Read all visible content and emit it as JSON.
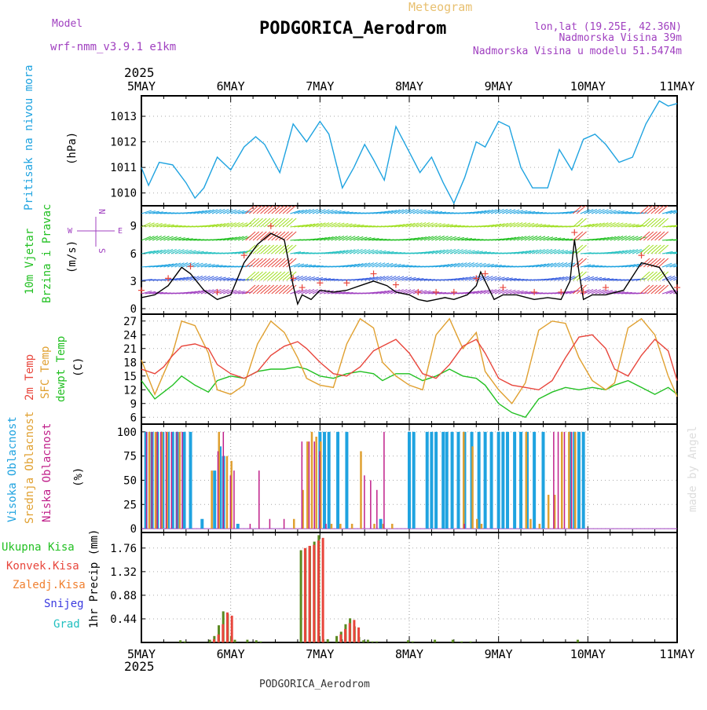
{
  "header": {
    "model_label": "Model",
    "model_name": "wrf-nmm_v3.9.1 e1km",
    "meteogram_label": "Meteogram",
    "station_title": "PODGORICA_Aerodrom",
    "lonlat": "lon,lat (19.25E, 42.36N)",
    "elevation": "Nadmorska Visina 39m",
    "model_elevation": "Nadmorska Visina u modelu 51.5474m",
    "year_top": "2025"
  },
  "footer": {
    "year_bottom": "2025",
    "station_caption": "PODGORICA_Aerodrom",
    "watermark": "made by Angel"
  },
  "days": [
    "5MAY",
    "6MAY",
    "7MAY",
    "8MAY",
    "9MAY",
    "10MAY",
    "11MAY"
  ],
  "colors": {
    "pressure": "#1fa3e0",
    "temp2m": "#e8463c",
    "sfc": "#e0a030",
    "dewpt": "#22c022",
    "wind_speed": "#000000",
    "gust_marker": "#e8463c",
    "cloud_high": "#1fa3e0",
    "cloud_mid": "#e0a030",
    "cloud_low": "#c0208a",
    "precip_total": "#22c022",
    "precip_conv": "#e8463c",
    "precip_frozen": "#f08030",
    "precip_snow": "#3a3ae0",
    "precip_hail": "#22c0c0",
    "purple": "#a040c0"
  },
  "panel_labels": {
    "pressure": {
      "l1": "Pritisak na nivou mora",
      "unit": "(hPa)"
    },
    "wind": {
      "l1": "10m Vjetar",
      "l2": "Brzina i Pravac",
      "unit": "(m/s)",
      "compass_n": "N",
      "compass_s": "S",
      "compass_w": "W",
      "compass_e": "E"
    },
    "temp": {
      "l1": "2m Temp",
      "l2": "SFC Temp",
      "l3": "dewpt Temp",
      "unit": "(C)"
    },
    "cloud": {
      "l1": "Visoka Oblacnost",
      "l2": "Srednja Oblacnost",
      "l3": "Niska Oblacnost",
      "unit": "(%)"
    },
    "precip": {
      "l1": "Ukupna Kisa",
      "l2": "Konvek.Kisa",
      "l3": "Zaledj.Kisa",
      "l4": "Snijeg",
      "l5": "Grad",
      "unit": "1hr Precip (mm)"
    }
  },
  "chart_data": [
    {
      "type": "line",
      "title": "Pritisak na nivou mora",
      "ylabel": "(hPa)",
      "ylim": [
        1009.5,
        1013.8
      ],
      "yticks": [
        1010,
        1011,
        1012,
        1013
      ],
      "x_days": [
        0,
        0.08,
        0.2,
        0.35,
        0.5,
        0.6,
        0.7,
        0.85,
        1.0,
        1.15,
        1.28,
        1.38,
        1.55,
        1.7,
        1.85,
        2.0,
        2.1,
        2.25,
        2.38,
        2.5,
        2.6,
        2.72,
        2.85,
        3.0,
        3.12,
        3.25,
        3.38,
        3.5,
        3.62,
        3.75,
        3.85,
        4.0,
        4.12,
        4.25,
        4.38,
        4.55,
        4.68,
        4.82,
        4.95,
        5.08,
        5.2,
        5.35,
        5.5,
        5.65,
        5.8,
        5.9,
        6.0
      ],
      "series": [
        {
          "name": "Pritisak na nivou mora",
          "values": [
            1011.0,
            1010.3,
            1011.2,
            1011.1,
            1010.4,
            1009.8,
            1010.2,
            1011.4,
            1010.9,
            1011.8,
            1012.2,
            1011.9,
            1010.8,
            1012.7,
            1012.0,
            1012.8,
            1012.3,
            1010.2,
            1011.0,
            1011.9,
            1011.3,
            1010.5,
            1012.6,
            1011.6,
            1010.8,
            1011.4,
            1010.4,
            1009.6,
            1010.6,
            1012.0,
            1011.8,
            1012.8,
            1012.6,
            1011.0,
            1010.2,
            1010.2,
            1011.7,
            1010.9,
            1012.1,
            1012.3,
            1011.9,
            1011.2,
            1011.4,
            1012.7,
            1013.6,
            1013.4,
            1013.5
          ]
        }
      ]
    },
    {
      "type": "line",
      "title": "10m Vjetar Brzina i Pravac",
      "ylabel": "(m/s)",
      "ylim": [
        -0.6,
        11.2
      ],
      "yticks": [
        0,
        3,
        6,
        9
      ],
      "x_days": [
        0,
        0.15,
        0.3,
        0.45,
        0.55,
        0.7,
        0.85,
        1.0,
        1.15,
        1.3,
        1.45,
        1.6,
        1.7,
        1.75,
        1.8,
        1.9,
        2.0,
        2.15,
        2.3,
        2.45,
        2.6,
        2.75,
        2.85,
        3.0,
        3.1,
        3.2,
        3.3,
        3.4,
        3.5,
        3.65,
        3.75,
        3.8,
        3.85,
        3.95,
        4.05,
        4.2,
        4.4,
        4.55,
        4.7,
        4.8,
        4.85,
        4.9,
        4.95,
        5.05,
        5.2,
        5.4,
        5.6,
        5.8,
        6.0
      ],
      "series": [
        {
          "name": "10m Vjetar",
          "values": [
            1.2,
            1.5,
            2.5,
            4.5,
            3.8,
            2.0,
            1.0,
            1.5,
            5.0,
            7.0,
            8.2,
            7.5,
            2.5,
            0.5,
            1.5,
            1.0,
            2.0,
            1.8,
            2.0,
            2.5,
            3.0,
            2.5,
            1.8,
            1.5,
            1.0,
            0.8,
            1.0,
            1.2,
            1.0,
            1.5,
            2.5,
            4.0,
            3.0,
            1.0,
            1.5,
            1.5,
            1.0,
            1.2,
            1.0,
            3.0,
            7.5,
            4.0,
            1.0,
            1.5,
            1.5,
            2.0,
            5.0,
            4.5,
            1.5
          ]
        }
      ]
    },
    {
      "type": "line",
      "title": "2m Temp / SFC Temp / dewpt Temp",
      "ylabel": "(C)",
      "ylim": [
        4.5,
        28.5
      ],
      "yticks": [
        6,
        9,
        12,
        15,
        18,
        21,
        24,
        27
      ],
      "x_days": [
        0,
        0.15,
        0.25,
        0.35,
        0.45,
        0.6,
        0.75,
        0.85,
        1.0,
        1.15,
        1.3,
        1.45,
        1.6,
        1.75,
        1.85,
        2.0,
        2.15,
        2.3,
        2.45,
        2.6,
        2.7,
        2.85,
        3.0,
        3.15,
        3.3,
        3.45,
        3.6,
        3.75,
        3.85,
        4.0,
        4.15,
        4.3,
        4.45,
        4.6,
        4.75,
        4.9,
        5.05,
        5.2,
        5.3,
        5.45,
        5.6,
        5.75,
        5.9,
        6.0
      ],
      "series": [
        {
          "name": "2m Temp",
          "values": [
            16.5,
            15.5,
            17.0,
            19.5,
            21.5,
            22.0,
            21.0,
            17.5,
            15.5,
            14.5,
            16.0,
            19.5,
            21.5,
            22.5,
            21.0,
            18.0,
            15.5,
            15.0,
            17.0,
            20.5,
            21.5,
            23.0,
            20.0,
            15.5,
            14.5,
            17.5,
            21.5,
            23.0,
            20.0,
            14.5,
            13.0,
            12.5,
            12.0,
            14.0,
            19.0,
            23.5,
            24.0,
            21.0,
            16.5,
            15.0,
            19.5,
            23.0,
            20.5,
            14.0
          ]
        },
        {
          "name": "SFC Temp",
          "values": [
            18.5,
            11.0,
            15.5,
            20.0,
            27.0,
            26.0,
            20.0,
            12.0,
            11.0,
            13.0,
            22.0,
            27.0,
            24.5,
            19.0,
            14.5,
            13.0,
            12.5,
            22.0,
            27.5,
            25.5,
            18.0,
            15.0,
            13.0,
            12.0,
            24.0,
            27.5,
            21.0,
            24.5,
            16.0,
            12.0,
            9.0,
            13.5,
            25.0,
            27.0,
            26.5,
            19.0,
            14.0,
            12.0,
            13.5,
            25.5,
            27.5,
            24.0,
            15.0,
            10.5
          ]
        },
        {
          "name": "dewpt Temp",
          "values": [
            14.0,
            10.0,
            11.5,
            13.0,
            15.0,
            13.0,
            11.5,
            14.0,
            15.0,
            14.5,
            16.0,
            16.5,
            16.5,
            17.0,
            16.5,
            15.0,
            14.5,
            15.5,
            16.0,
            15.5,
            14.0,
            15.5,
            15.5,
            14.0,
            15.0,
            16.5,
            15.0,
            14.5,
            13.0,
            9.0,
            7.0,
            6.0,
            10.0,
            11.5,
            12.5,
            12.0,
            12.5,
            12.0,
            13.0,
            14.0,
            12.5,
            11.0,
            12.5,
            11.0
          ]
        }
      ]
    },
    {
      "type": "bar",
      "title": "Visoka / Srednja / Niska Oblacnost",
      "ylabel": "(%)",
      "ylim": [
        -4,
        108
      ],
      "yticks": [
        0,
        25,
        50,
        75,
        100
      ],
      "series": [
        {
          "name": "Visoka Oblacnost",
          "x": [
            0.05,
            0.12,
            0.18,
            0.24,
            0.3,
            0.35,
            0.4,
            0.48,
            0.55,
            0.68,
            0.82,
            0.88,
            0.92,
            1.08,
            2.0,
            2.05,
            2.1,
            2.2,
            2.3,
            2.68,
            3.0,
            3.05,
            3.2,
            3.25,
            3.3,
            3.38,
            3.42,
            3.48,
            3.55,
            3.62,
            3.7,
            3.78,
            3.85,
            3.92,
            4.0,
            4.05,
            4.1,
            4.18,
            4.25,
            4.32,
            4.4,
            4.5,
            4.8,
            4.85,
            4.9,
            4.95
          ],
          "values": [
            100,
            100,
            100,
            100,
            100,
            100,
            100,
            100,
            100,
            10,
            60,
            85,
            75,
            5,
            100,
            100,
            100,
            100,
            100,
            10,
            100,
            100,
            100,
            100,
            100,
            100,
            100,
            100,
            100,
            100,
            100,
            100,
            100,
            100,
            100,
            100,
            100,
            100,
            100,
            100,
            100,
            100,
            100,
            100,
            100,
            100
          ]
        },
        {
          "name": "Srednja Oblacnost",
          "x": [
            0.08,
            0.15,
            0.22,
            0.28,
            0.42,
            0.78,
            0.86,
            0.95,
            1.0,
            1.7,
            1.8,
            1.85,
            1.9,
            1.95,
            2.0,
            2.12,
            2.22,
            2.35,
            2.45,
            2.6,
            2.7,
            2.8,
            3.6,
            3.7,
            3.75,
            3.8,
            4.3,
            4.35,
            4.45,
            4.55,
            4.62,
            4.7,
            4.78,
            4.85
          ],
          "values": [
            100,
            100,
            100,
            100,
            100,
            60,
            100,
            75,
            70,
            10,
            40,
            90,
            100,
            95,
            90,
            5,
            5,
            5,
            80,
            5,
            5,
            5,
            100,
            85,
            10,
            5,
            100,
            10,
            5,
            35,
            35,
            100,
            100,
            100
          ]
        },
        {
          "name": "Niska Oblacnost",
          "x": [
            0.04,
            0.1,
            0.16,
            0.2,
            0.26,
            0.32,
            0.38,
            0.44,
            0.84,
            0.9,
            0.98,
            1.02,
            1.2,
            1.3,
            1.42,
            1.58,
            1.78,
            1.86,
            1.92,
            1.98,
            2.05,
            2.48,
            2.55,
            2.62,
            2.7,
            3.6,
            4.6,
            4.65,
            4.72,
            4.8
          ],
          "values": [
            100,
            100,
            100,
            100,
            100,
            100,
            100,
            100,
            80,
            100,
            55,
            60,
            5,
            60,
            10,
            10,
            90,
            90,
            90,
            80,
            5,
            55,
            50,
            40,
            100,
            5,
            100,
            100,
            100,
            100
          ]
        }
      ]
    },
    {
      "type": "bar",
      "title": "1hr Precip",
      "ylabel": "1hr Precip (mm)",
      "ylim": [
        0,
        2.05
      ],
      "yticks": [
        0.44,
        0.88,
        1.32,
        1.76
      ],
      "series": [
        {
          "name": "Ukupna Kisa",
          "x": [
            0.45,
            0.5,
            0.78,
            0.83,
            0.88,
            0.93,
            0.98,
            1.02,
            1.06,
            1.2,
            1.3,
            1.35,
            1.8,
            1.85,
            1.9,
            1.95,
            2.0,
            2.05,
            2.1,
            2.2,
            2.25,
            2.3,
            2.35,
            2.4,
            2.45,
            2.5,
            2.55,
            2.6,
            2.65,
            3.0,
            3.05,
            3.3,
            3.5,
            3.6,
            3.7,
            4.9
          ],
          "values": [
            0.04,
            0.02,
            0.05,
            0.12,
            0.32,
            0.58,
            0.53,
            0.12,
            0.05,
            0.05,
            0.04,
            0.02,
            1.72,
            1.75,
            1.8,
            1.88,
            2.0,
            0.06,
            0.06,
            0.12,
            0.2,
            0.34,
            0.45,
            0.3,
            0.1,
            0.04,
            0.05,
            0.02,
            0.02,
            0.04,
            0.02,
            0.05,
            0.05,
            0.02,
            0.02,
            0.05
          ]
        },
        {
          "name": "Konvek.Kisa",
          "x": [
            0.8,
            0.85,
            0.9,
            0.95,
            1.0,
            1.82,
            1.87,
            1.92,
            1.97,
            2.02,
            2.22,
            2.27,
            2.32,
            2.37,
            2.42
          ],
          "values": [
            0.06,
            0.15,
            0.34,
            0.56,
            0.5,
            1.76,
            1.8,
            1.82,
            1.9,
            1.95,
            0.15,
            0.25,
            0.36,
            0.42,
            0.28
          ]
        }
      ]
    }
  ]
}
